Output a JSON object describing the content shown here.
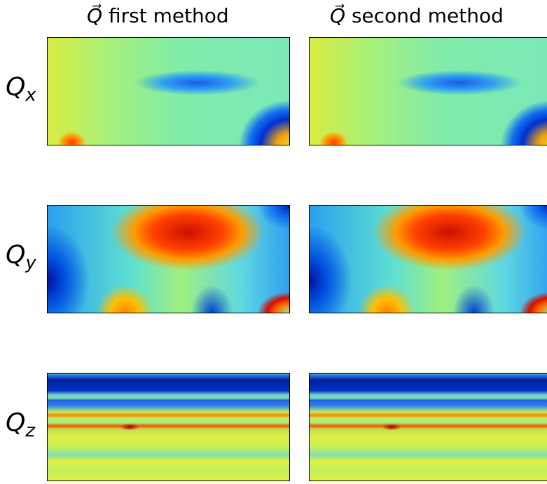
{
  "columns": [
    {
      "symbol": "Q⃗",
      "label": "first method"
    },
    {
      "symbol": "Q⃗",
      "label": "second method"
    }
  ],
  "rows": [
    {
      "symbol": "Q",
      "subscript": "x"
    },
    {
      "symbol": "Q",
      "subscript": "y"
    },
    {
      "symbol": "Q",
      "subscript": "z"
    }
  ]
}
